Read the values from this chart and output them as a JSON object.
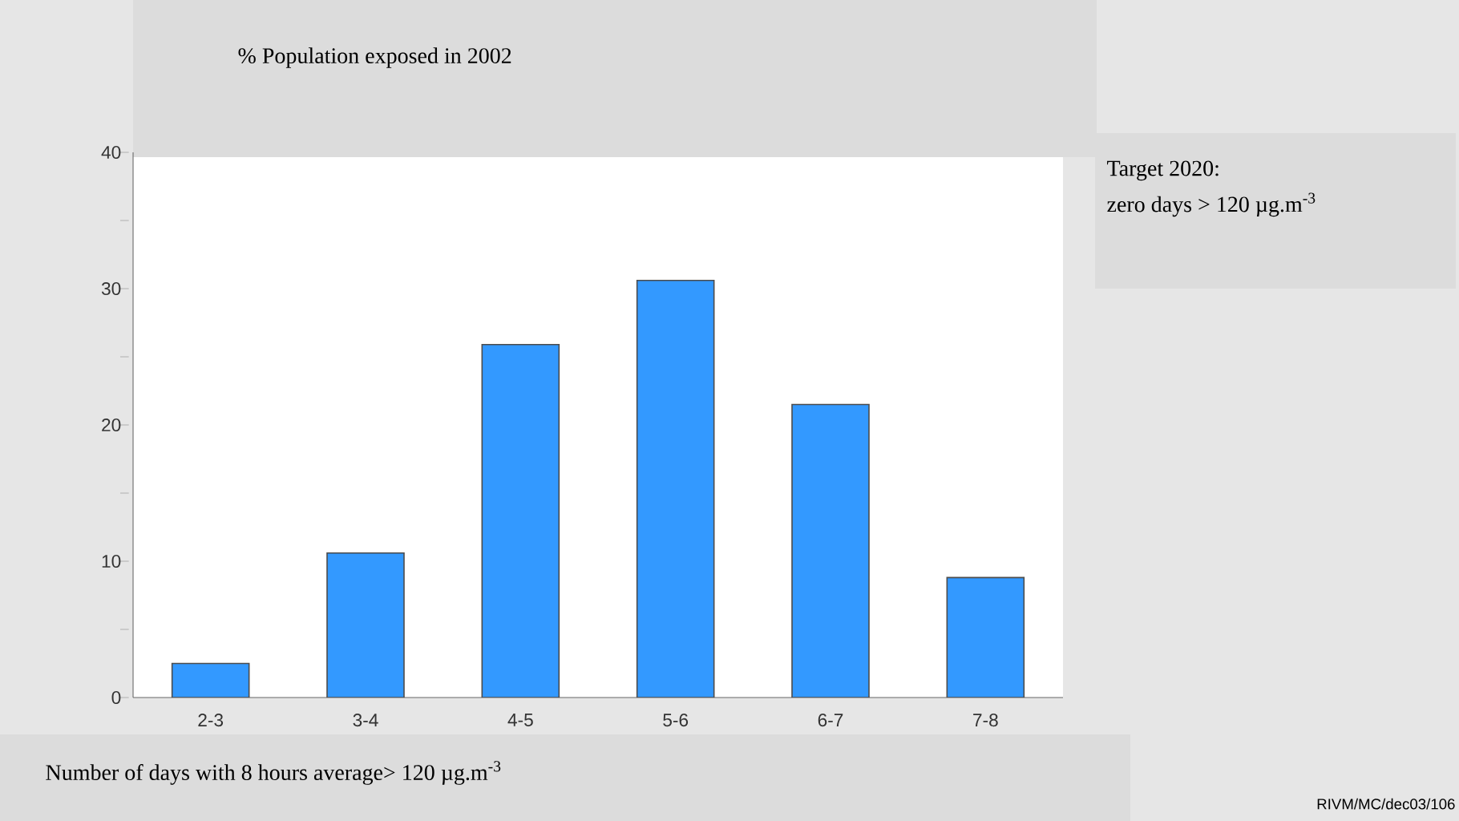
{
  "chart_data": {
    "type": "bar",
    "title": "% Population exposed in 2002",
    "xlabel": "Number of days with 8 hours average> 120  µg.m$^{-3}$",
    "categories": [
      "2-3",
      "3-4",
      "4-5",
      "5-6",
      "6-7",
      "7-8"
    ],
    "values": [
      2.5,
      10.6,
      25.9,
      30.6,
      21.5,
      8.8
    ],
    "color": "#3399ff",
    "ylim": [
      0,
      40
    ],
    "yticks": [
      0,
      {
        "value": 5,
        "label": null
      },
      10,
      {
        "value": 15,
        "label": null
      },
      20,
      {
        "value": 25,
        "label": null
      },
      30,
      {
        "value": 35,
        "label": null
      },
      40
    ],
    "grid": false,
    "annotations": [
      "Target 2020:",
      "zero days > 120 µg.m$^{-3}$",
      "RIVM/MC/dec03/106"
    ]
  }
}
